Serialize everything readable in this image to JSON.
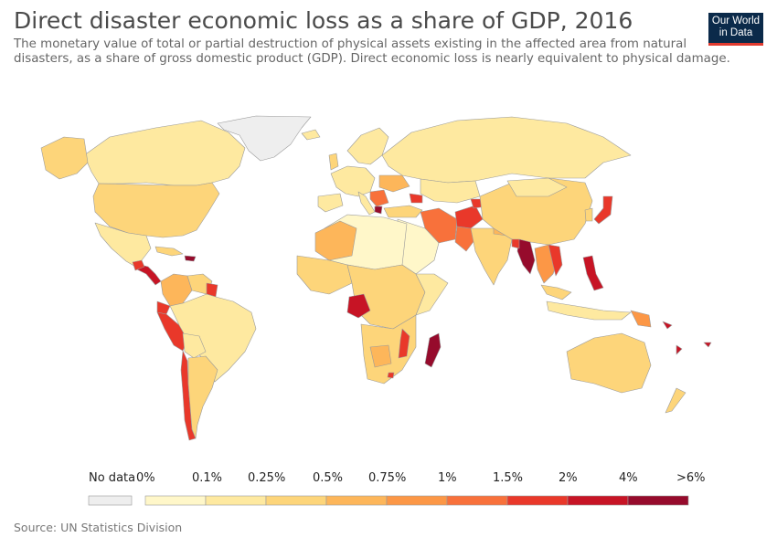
{
  "header": {
    "title": "Direct disaster economic loss as a share of GDP, 2016",
    "subtitle": "The monetary value of total or partial destruction of physical assets existing in the affected area from natural disasters, as a share of gross domestic product (GDP). Direct economic loss is nearly equivalent to physical damage."
  },
  "logo": {
    "line1": "Our World",
    "line2": "in Data"
  },
  "legend": {
    "no_data_label": "No data",
    "no_data_color": "#eeeeee",
    "ticks": [
      "0%",
      "0.1%",
      "0.25%",
      "0.5%",
      "0.75%",
      "1%",
      "1.5%",
      "2%",
      "4%",
      ">6%"
    ],
    "bin_colors": [
      "#fff7c9",
      "#fee9a0",
      "#fdd57a",
      "#fdb65a",
      "#fc9746",
      "#f8713b",
      "#e9382a",
      "#c71425",
      "#960b2c"
    ]
  },
  "colors": {
    "no_data": "#eeeeee",
    "c1": "#fff7c9",
    "c2": "#fee9a0",
    "c3": "#fdd57a",
    "c4": "#fdb65a",
    "c5": "#fc9746",
    "c6": "#f8713b",
    "c7": "#e9382a",
    "c8": "#c71425",
    "c9": "#960b2c",
    "border": "#9b9b9b"
  },
  "footer": {
    "source": "Source: UN Statistics Division"
  }
}
